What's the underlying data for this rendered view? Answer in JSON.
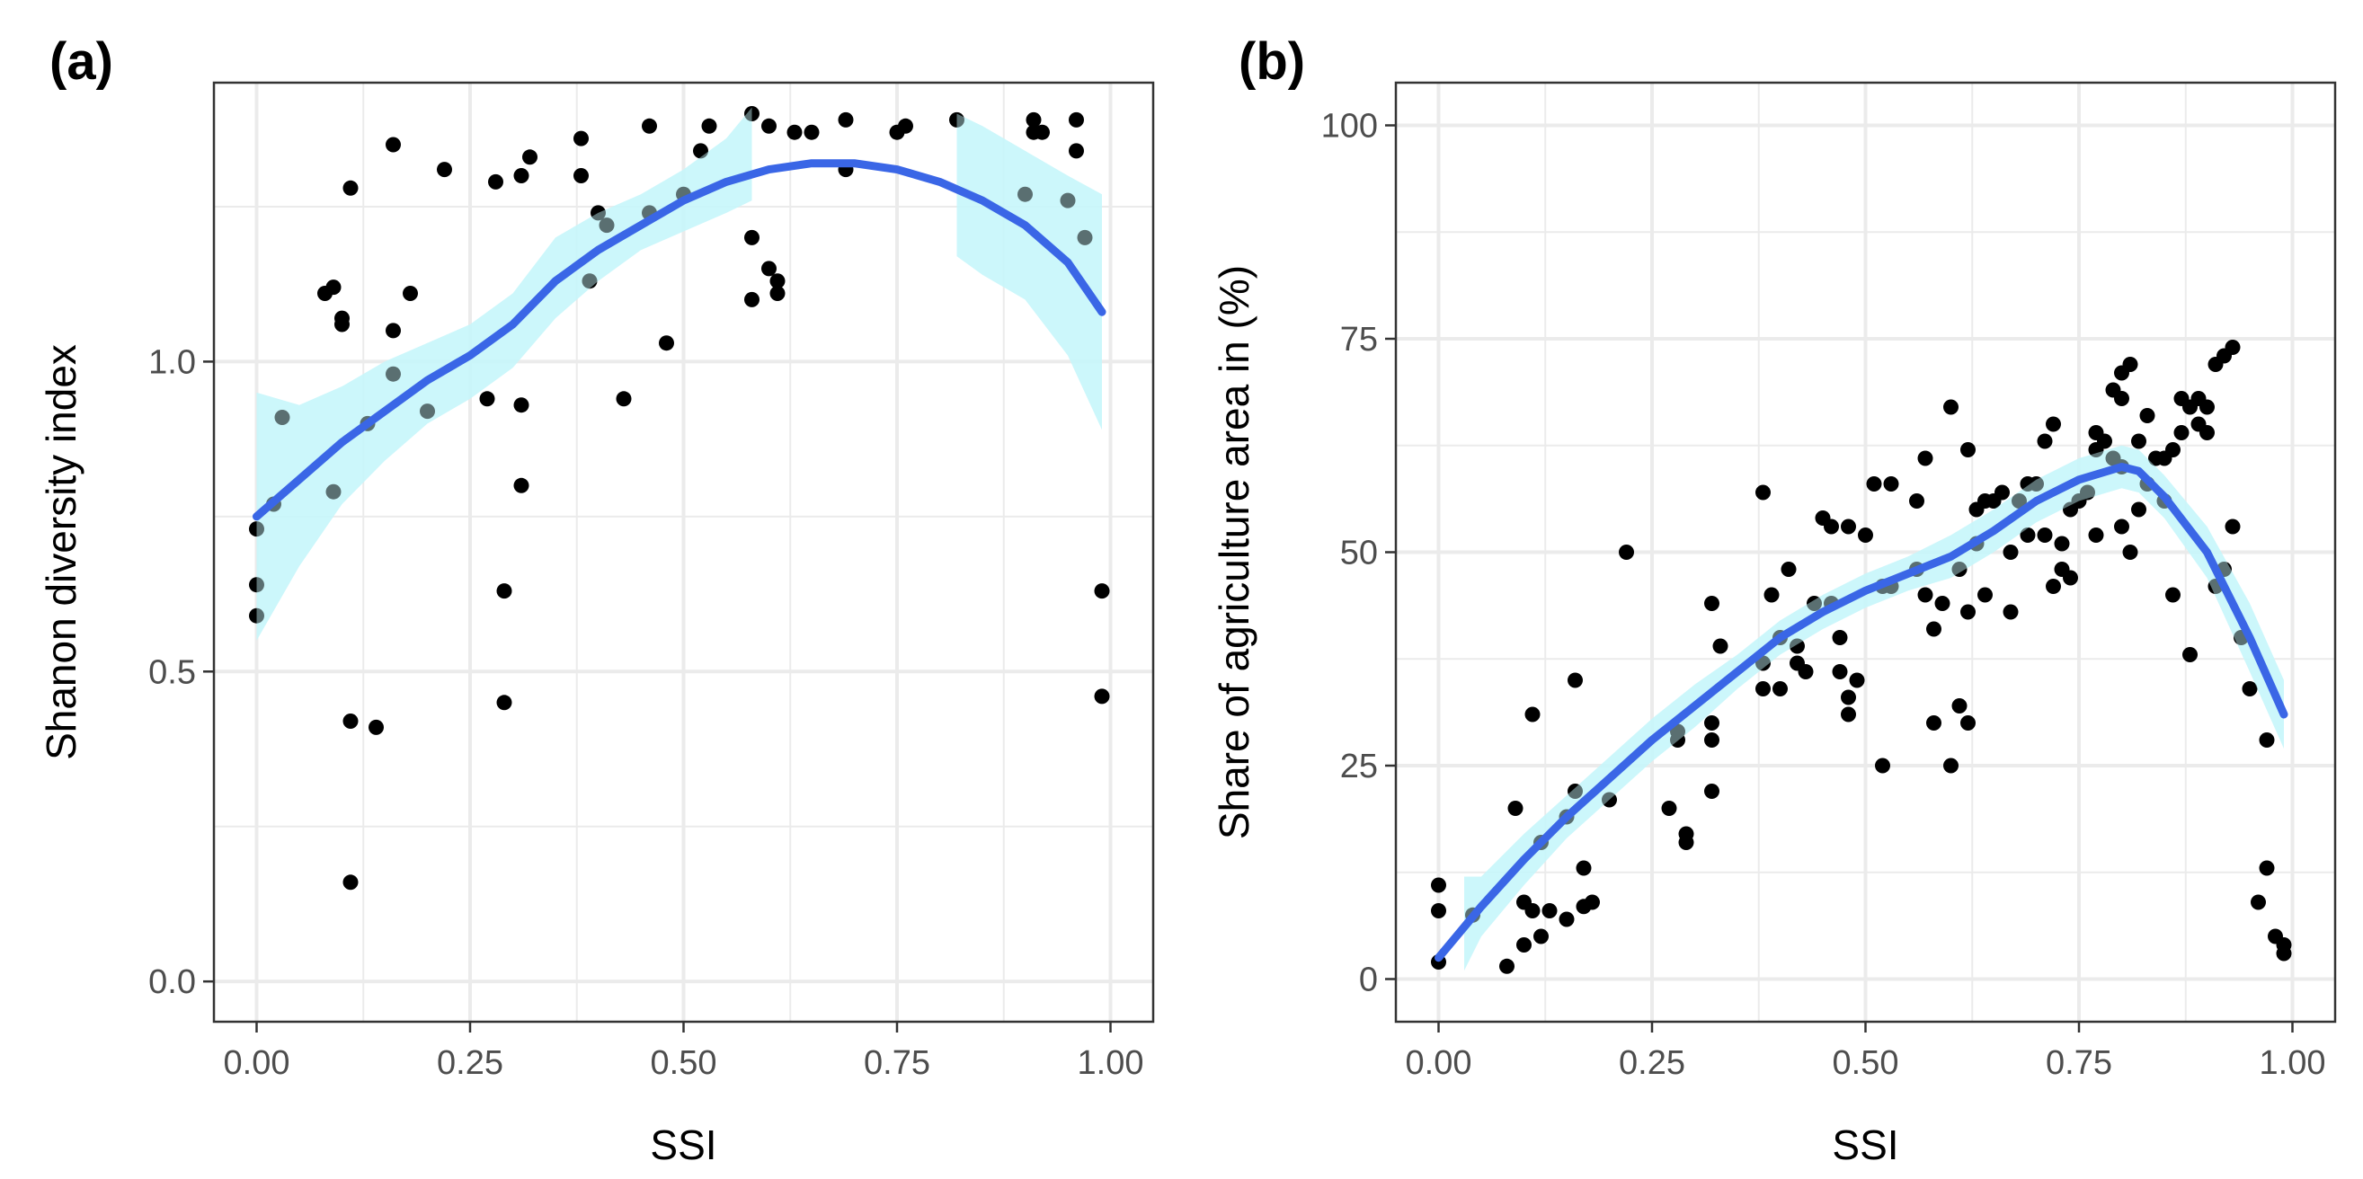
{
  "chart_data": [
    {
      "type": "scatter",
      "panel_label": "(a)",
      "xlabel": "SSI",
      "ylabel": "Shanon diversity index",
      "xlim": [
        -0.05,
        1.05
      ],
      "ylim": [
        -0.065,
        1.45
      ],
      "xticks": [
        0,
        0.25,
        0.5,
        0.75,
        1
      ],
      "xtick_labels": [
        "0.00",
        "0.25",
        "0.50",
        "0.75",
        "1.00"
      ],
      "yticks": [
        0,
        0.5,
        1.0
      ],
      "ytick_labels": [
        "0.0",
        "0.5",
        "1.0"
      ],
      "grid": true,
      "colors": {
        "points": "#000000",
        "smooth": "#3a66e6",
        "ribbon": "#c8f6fa",
        "grid": "#ebebeb",
        "border": "#333333"
      },
      "points": [
        [
          0.0,
          0.73
        ],
        [
          0.0,
          0.64
        ],
        [
          0.0,
          0.59
        ],
        [
          0.02,
          0.77
        ],
        [
          0.03,
          0.91
        ],
        [
          0.08,
          1.11
        ],
        [
          0.09,
          1.12
        ],
        [
          0.1,
          1.07
        ],
        [
          0.1,
          1.06
        ],
        [
          0.09,
          0.79
        ],
        [
          0.11,
          1.28
        ],
        [
          0.11,
          0.42
        ],
        [
          0.11,
          0.16
        ],
        [
          0.13,
          0.9
        ],
        [
          0.14,
          0.41
        ],
        [
          0.16,
          1.35
        ],
        [
          0.16,
          1.05
        ],
        [
          0.16,
          0.98
        ],
        [
          0.18,
          1.11
        ],
        [
          0.2,
          0.92
        ],
        [
          0.22,
          1.31
        ],
        [
          0.27,
          0.94
        ],
        [
          0.28,
          1.29
        ],
        [
          0.29,
          0.63
        ],
        [
          0.29,
          0.45
        ],
        [
          0.31,
          1.3
        ],
        [
          0.31,
          0.93
        ],
        [
          0.31,
          0.8
        ],
        [
          0.32,
          1.33
        ],
        [
          0.38,
          1.3
        ],
        [
          0.38,
          1.36
        ],
        [
          0.39,
          1.13
        ],
        [
          0.4,
          1.24
        ],
        [
          0.41,
          1.22
        ],
        [
          0.43,
          0.94
        ],
        [
          0.46,
          1.38
        ],
        [
          0.46,
          1.24
        ],
        [
          0.48,
          1.03
        ],
        [
          0.5,
          1.27
        ],
        [
          0.52,
          1.34
        ],
        [
          0.53,
          1.38
        ],
        [
          0.58,
          1.4
        ],
        [
          0.58,
          1.2
        ],
        [
          0.58,
          1.1
        ],
        [
          0.6,
          1.38
        ],
        [
          0.6,
          1.15
        ],
        [
          0.61,
          1.11
        ],
        [
          0.61,
          1.13
        ],
        [
          0.63,
          1.37
        ],
        [
          0.65,
          1.37
        ],
        [
          0.69,
          1.39
        ],
        [
          0.69,
          1.31
        ],
        [
          0.75,
          1.37
        ],
        [
          0.76,
          1.38
        ],
        [
          0.82,
          1.39
        ],
        [
          0.9,
          1.27
        ],
        [
          0.91,
          1.39
        ],
        [
          0.91,
          1.37
        ],
        [
          0.92,
          1.37
        ],
        [
          0.95,
          1.26
        ],
        [
          0.96,
          1.39
        ],
        [
          0.96,
          1.34
        ],
        [
          0.97,
          1.2
        ],
        [
          0.99,
          0.63
        ],
        [
          0.99,
          0.46
        ]
      ],
      "smooth_line": {
        "x": [
          0.0,
          0.05,
          0.1,
          0.15,
          0.2,
          0.25,
          0.3,
          0.35,
          0.4,
          0.45,
          0.5,
          0.55,
          0.6,
          0.65,
          0.7,
          0.75,
          0.8,
          0.85,
          0.9,
          0.95,
          0.99
        ],
        "y": [
          0.75,
          0.81,
          0.87,
          0.92,
          0.97,
          1.01,
          1.06,
          1.13,
          1.18,
          1.22,
          1.26,
          1.29,
          1.31,
          1.32,
          1.32,
          1.31,
          1.29,
          1.26,
          1.22,
          1.16,
          1.08
        ]
      },
      "ribbon_segments": [
        {
          "x": [
            0.0,
            0.05,
            0.1,
            0.15,
            0.2,
            0.25,
            0.3,
            0.35,
            0.4,
            0.45,
            0.5,
            0.55,
            0.58
          ],
          "lower": [
            0.55,
            0.67,
            0.77,
            0.84,
            0.9,
            0.94,
            0.99,
            1.07,
            1.13,
            1.18,
            1.21,
            1.24,
            1.26
          ],
          "upper": [
            0.95,
            0.93,
            0.96,
            1.0,
            1.03,
            1.06,
            1.11,
            1.2,
            1.24,
            1.27,
            1.31,
            1.36,
            1.41
          ]
        },
        {
          "x": [
            0.82,
            0.85,
            0.9,
            0.95,
            0.99
          ],
          "lower": [
            1.17,
            1.14,
            1.1,
            1.01,
            0.89
          ],
          "upper": [
            1.4,
            1.38,
            1.34,
            1.3,
            1.27
          ]
        }
      ]
    },
    {
      "type": "scatter",
      "panel_label": "(b)",
      "xlabel": "SSI",
      "ylabel": "Share of agriculture area in (%)",
      "xlim": [
        -0.05,
        1.05
      ],
      "ylim": [
        -5,
        105
      ],
      "xticks": [
        0,
        0.25,
        0.5,
        0.75,
        1
      ],
      "xtick_labels": [
        "0.00",
        "0.25",
        "0.50",
        "0.75",
        "1.00"
      ],
      "yticks": [
        0,
        25,
        50,
        75,
        100
      ],
      "ytick_labels": [
        "0",
        "25",
        "50",
        "75",
        "100"
      ],
      "grid": true,
      "colors": {
        "points": "#000000",
        "smooth": "#3a66e6",
        "ribbon": "#c8f6fa",
        "grid": "#ebebeb",
        "border": "#333333"
      },
      "points": [
        [
          0.0,
          11
        ],
        [
          0.0,
          8
        ],
        [
          0.0,
          2
        ],
        [
          0.04,
          7.5
        ],
        [
          0.08,
          1.5
        ],
        [
          0.09,
          20
        ],
        [
          0.1,
          4
        ],
        [
          0.1,
          9
        ],
        [
          0.11,
          31
        ],
        [
          0.11,
          8
        ],
        [
          0.12,
          16
        ],
        [
          0.12,
          5
        ],
        [
          0.13,
          8
        ],
        [
          0.15,
          7
        ],
        [
          0.15,
          19
        ],
        [
          0.16,
          35
        ],
        [
          0.16,
          22
        ],
        [
          0.17,
          8.5
        ],
        [
          0.17,
          13
        ],
        [
          0.18,
          9
        ],
        [
          0.2,
          21
        ],
        [
          0.22,
          50
        ],
        [
          0.27,
          20
        ],
        [
          0.28,
          28
        ],
        [
          0.28,
          29
        ],
        [
          0.29,
          16
        ],
        [
          0.29,
          17
        ],
        [
          0.32,
          44
        ],
        [
          0.32,
          30
        ],
        [
          0.32,
          28
        ],
        [
          0.32,
          22
        ],
        [
          0.33,
          39
        ],
        [
          0.38,
          34
        ],
        [
          0.38,
          37
        ],
        [
          0.38,
          57
        ],
        [
          0.39,
          45
        ],
        [
          0.4,
          40
        ],
        [
          0.4,
          34
        ],
        [
          0.41,
          48
        ],
        [
          0.42,
          37
        ],
        [
          0.42,
          39
        ],
        [
          0.43,
          36
        ],
        [
          0.44,
          44
        ],
        [
          0.45,
          54
        ],
        [
          0.46,
          53
        ],
        [
          0.46,
          44
        ],
        [
          0.47,
          40
        ],
        [
          0.47,
          36
        ],
        [
          0.48,
          53
        ],
        [
          0.48,
          33
        ],
        [
          0.48,
          31
        ],
        [
          0.49,
          35
        ],
        [
          0.5,
          52
        ],
        [
          0.51,
          58
        ],
        [
          0.52,
          46
        ],
        [
          0.52,
          25
        ],
        [
          0.53,
          58
        ],
        [
          0.53,
          46
        ],
        [
          0.56,
          56
        ],
        [
          0.56,
          48
        ],
        [
          0.57,
          61
        ],
        [
          0.57,
          45
        ],
        [
          0.58,
          41
        ],
        [
          0.58,
          30
        ],
        [
          0.59,
          44
        ],
        [
          0.6,
          67
        ],
        [
          0.6,
          25
        ],
        [
          0.61,
          48
        ],
        [
          0.61,
          32
        ],
        [
          0.62,
          62
        ],
        [
          0.62,
          43
        ],
        [
          0.62,
          30
        ],
        [
          0.63,
          55
        ],
        [
          0.63,
          51
        ],
        [
          0.64,
          56
        ],
        [
          0.64,
          45
        ],
        [
          0.65,
          56
        ],
        [
          0.66,
          57
        ],
        [
          0.67,
          50
        ],
        [
          0.67,
          43
        ],
        [
          0.68,
          56
        ],
        [
          0.69,
          58
        ],
        [
          0.69,
          52
        ],
        [
          0.7,
          58
        ],
        [
          0.71,
          63
        ],
        [
          0.71,
          52
        ],
        [
          0.72,
          65
        ],
        [
          0.72,
          46
        ],
        [
          0.73,
          51
        ],
        [
          0.73,
          48
        ],
        [
          0.74,
          55
        ],
        [
          0.74,
          47
        ],
        [
          0.75,
          56
        ],
        [
          0.76,
          57
        ],
        [
          0.77,
          64
        ],
        [
          0.77,
          62
        ],
        [
          0.77,
          52
        ],
        [
          0.78,
          63
        ],
        [
          0.79,
          69
        ],
        [
          0.79,
          61
        ],
        [
          0.8,
          71
        ],
        [
          0.8,
          68
        ],
        [
          0.8,
          60
        ],
        [
          0.8,
          53
        ],
        [
          0.81,
          72
        ],
        [
          0.81,
          50
        ],
        [
          0.82,
          63
        ],
        [
          0.82,
          55
        ],
        [
          0.83,
          66
        ],
        [
          0.83,
          58
        ],
        [
          0.84,
          61
        ],
        [
          0.85,
          61
        ],
        [
          0.85,
          56
        ],
        [
          0.86,
          62
        ],
        [
          0.86,
          45
        ],
        [
          0.87,
          68
        ],
        [
          0.87,
          64
        ],
        [
          0.88,
          67
        ],
        [
          0.88,
          38
        ],
        [
          0.89,
          68
        ],
        [
          0.89,
          65
        ],
        [
          0.9,
          67
        ],
        [
          0.9,
          64
        ],
        [
          0.91,
          72
        ],
        [
          0.91,
          46
        ],
        [
          0.92,
          73
        ],
        [
          0.92,
          48
        ],
        [
          0.93,
          74
        ],
        [
          0.93,
          53
        ],
        [
          0.94,
          40
        ],
        [
          0.95,
          34
        ],
        [
          0.96,
          9
        ],
        [
          0.97,
          13
        ],
        [
          0.97,
          28
        ],
        [
          0.98,
          5
        ],
        [
          0.99,
          3
        ],
        [
          0.99,
          4
        ]
      ],
      "smooth_line": {
        "x": [
          0.0,
          0.05,
          0.1,
          0.15,
          0.2,
          0.25,
          0.3,
          0.35,
          0.4,
          0.45,
          0.5,
          0.55,
          0.6,
          0.65,
          0.7,
          0.75,
          0.8,
          0.82,
          0.85,
          0.9,
          0.95,
          0.99
        ],
        "y": [
          2.5,
          8.5,
          14,
          19,
          23.5,
          28,
          32,
          36,
          40,
          43,
          45.5,
          47.5,
          49.5,
          52.5,
          56,
          58.5,
          60,
          59.5,
          56.5,
          50,
          40,
          31
        ]
      },
      "ribbon_segments": [
        {
          "x": [
            0.03,
            0.05,
            0.1,
            0.15,
            0.2,
            0.25,
            0.3,
            0.35,
            0.4,
            0.45,
            0.5,
            0.55,
            0.6,
            0.65,
            0.7,
            0.75,
            0.8,
            0.82,
            0.85,
            0.9,
            0.95,
            0.99
          ],
          "lower": [
            1,
            5,
            11,
            16.5,
            21,
            25.5,
            29.5,
            34,
            38,
            41,
            43.5,
            45.5,
            47,
            50,
            53.5,
            56,
            57.5,
            57,
            54,
            47,
            36,
            27
          ],
          "upper": [
            12,
            12,
            17,
            21.5,
            26,
            30.5,
            34.5,
            38,
            42,
            45,
            47.5,
            49.5,
            52,
            55,
            58.5,
            61,
            62.5,
            62,
            59,
            53,
            44,
            35
          ]
        }
      ]
    }
  ]
}
